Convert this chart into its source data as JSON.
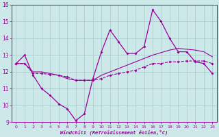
{
  "xlabel": "Windchill (Refroidissement éolien,°C)",
  "bg_color": "#cce8e8",
  "line_color": "#990099",
  "grid_color": "#aad0d0",
  "xlim": [
    -0.5,
    23.5
  ],
  "ylim": [
    9,
    16
  ],
  "yticks": [
    9,
    10,
    11,
    12,
    13,
    14,
    15,
    16
  ],
  "xticks": [
    0,
    1,
    2,
    3,
    4,
    5,
    6,
    7,
    8,
    9,
    10,
    11,
    12,
    13,
    14,
    15,
    16,
    17,
    18,
    19,
    20,
    21,
    22,
    23
  ],
  "s1_y": [
    12.5,
    13.0,
    11.8,
    11.0,
    10.6,
    10.1,
    9.8,
    9.1,
    9.5,
    11.6,
    13.2,
    14.5,
    13.8,
    13.1,
    13.1,
    13.5,
    15.7,
    15.0,
    14.0,
    13.2,
    13.2,
    12.6,
    12.5,
    11.9
  ],
  "s2_y": [
    12.5,
    12.5,
    11.9,
    11.9,
    11.85,
    11.8,
    11.7,
    11.5,
    11.5,
    11.5,
    11.6,
    11.8,
    11.9,
    12.0,
    12.1,
    12.3,
    12.5,
    12.5,
    12.6,
    12.6,
    12.65,
    12.65,
    12.65,
    12.5
  ],
  "s3_y": [
    12.5,
    12.5,
    12.0,
    12.0,
    11.9,
    11.8,
    11.6,
    11.5,
    11.5,
    11.5,
    11.8,
    12.0,
    12.2,
    12.4,
    12.6,
    12.8,
    13.0,
    13.15,
    13.3,
    13.4,
    13.35,
    13.3,
    13.2,
    12.9
  ]
}
